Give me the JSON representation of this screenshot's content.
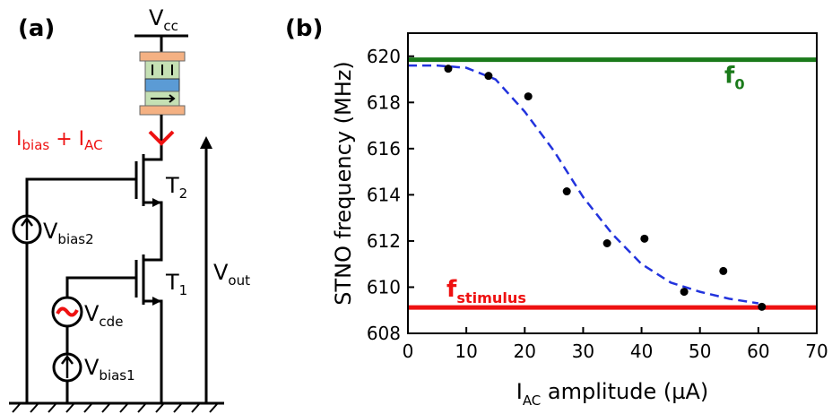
{
  "panel_a": {
    "label": "(a)",
    "vcc": {
      "main": "V",
      "sub": "cc"
    },
    "current": [
      {
        "main": "I",
        "sub": "bias"
      },
      {
        "main": " + I",
        "sub": "AC"
      }
    ],
    "t2": {
      "main": "T",
      "sub": "2"
    },
    "t1": {
      "main": "T",
      "sub": "1"
    },
    "vbias2": {
      "main": "V",
      "sub": "bias2"
    },
    "vcde": {
      "main": "V",
      "sub": "cde"
    },
    "vbias1": {
      "main": "V",
      "sub": "bias1"
    },
    "vout": {
      "main": "V",
      "sub": "out"
    }
  },
  "chart_data": {
    "type": "scatter",
    "panel_label": "(b)",
    "ylabel": "STNO frequency (MHz)",
    "xlabel": {
      "main": "I",
      "sub": "AC",
      "rest": " amplitude (µA)"
    },
    "xlim": [
      0,
      70
    ],
    "xticks": [
      0,
      10,
      20,
      30,
      40,
      50,
      60,
      70
    ],
    "ylim": [
      608,
      621
    ],
    "yticks": [
      608,
      610,
      612,
      614,
      616,
      618,
      620
    ],
    "series": [
      {
        "type": "line",
        "color": "#2233dd",
        "dashed": true,
        "x": [
          0,
          5,
          10,
          15,
          20,
          25,
          30,
          35,
          40,
          45,
          50,
          55,
          60
        ],
        "values": [
          619.6,
          619.6,
          619.5,
          619.0,
          617.6,
          615.9,
          613.9,
          612.3,
          611.0,
          610.2,
          609.8,
          609.5,
          609.3
        ]
      },
      {
        "type": "scatter",
        "color": "#000000",
        "x": [
          6.9,
          13.8,
          20.6,
          27.2,
          34.1,
          40.5,
          47.3,
          54.0,
          60.6
        ],
        "values": [
          619.46,
          619.15,
          618.26,
          614.15,
          611.9,
          612.1,
          609.8,
          610.7,
          609.15
        ]
      }
    ],
    "reference_lines": [
      {
        "value": 619.85,
        "color": "#1a7a1a",
        "label": {
          "main": "f",
          "sub": "0"
        }
      },
      {
        "value": 609.12,
        "color": "#ee1111",
        "label": {
          "main": "f",
          "sub": "stimulus"
        }
      }
    ]
  }
}
